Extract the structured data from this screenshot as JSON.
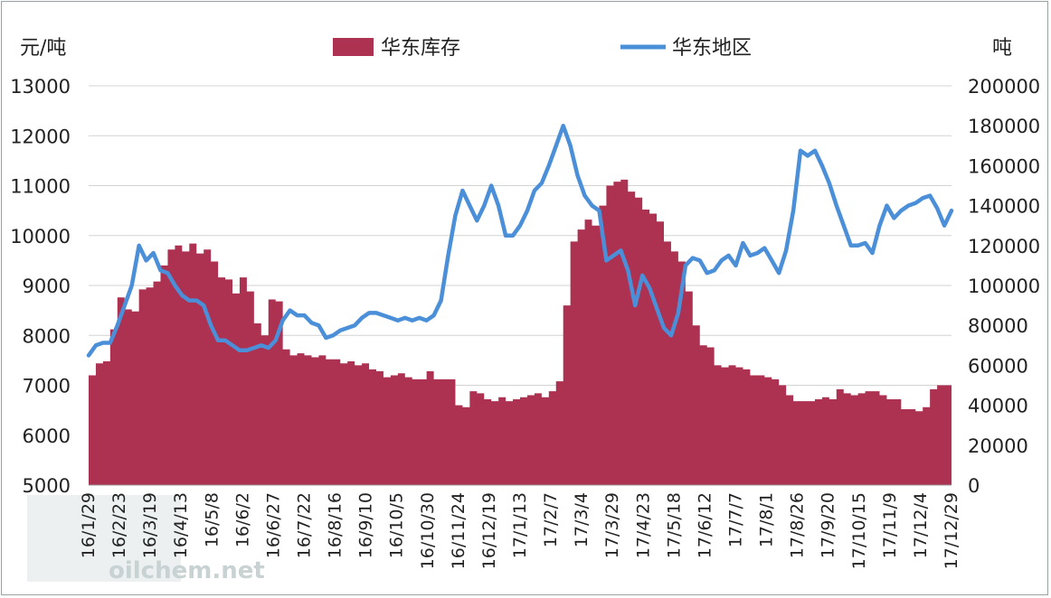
{
  "chart_data": {
    "type": "area+line",
    "title": "",
    "left_axis": {
      "unit": "元/吨",
      "min": 5000,
      "max": 13000,
      "ticks": [
        5000,
        6000,
        7000,
        8000,
        9000,
        10000,
        11000,
        12000,
        13000
      ]
    },
    "right_axis": {
      "unit": "吨",
      "min": 0,
      "max": 200000,
      "ticks": [
        0,
        20000,
        40000,
        60000,
        80000,
        100000,
        120000,
        140000,
        160000,
        180000,
        200000
      ]
    },
    "x_labels": [
      "16/1/29",
      "16/2/23",
      "16/3/19",
      "16/4/13",
      "16/5/8",
      "16/6/2",
      "16/6/27",
      "16/7/22",
      "16/8/16",
      "16/9/10",
      "16/10/5",
      "16/10/30",
      "16/11/24",
      "16/12/19",
      "17/1/13",
      "17/2/7",
      "17/3/4",
      "17/3/29",
      "17/4/23",
      "17/5/18",
      "17/6/12",
      "17/7/7",
      "17/8/1",
      "17/8/26",
      "17/9/20",
      "17/10/15",
      "17/11/9",
      "17/12/4",
      "17/12/29"
    ],
    "legend_position": "top-center",
    "series": [
      {
        "name": "华东库存",
        "axis": "right",
        "style": "area",
        "color": "#ad3150",
        "values": [
          55000,
          61000,
          62000,
          78000,
          94000,
          88000,
          87000,
          98000,
          99000,
          102000,
          110000,
          118000,
          120000,
          117000,
          121000,
          116000,
          118000,
          112000,
          104000,
          103000,
          96000,
          104000,
          97000,
          81000,
          75000,
          93000,
          92000,
          68000,
          65000,
          66000,
          65000,
          64000,
          65000,
          63000,
          63000,
          61000,
          62000,
          60000,
          61000,
          58000,
          57000,
          54000,
          55000,
          56000,
          54000,
          53000,
          53000,
          57000,
          53000,
          53000,
          53000,
          40000,
          39000,
          47000,
          46000,
          43000,
          42000,
          44000,
          42000,
          43000,
          44000,
          45000,
          46000,
          44000,
          47000,
          52000,
          90000,
          122000,
          128000,
          133000,
          130000,
          140000,
          150000,
          152000,
          153000,
          147000,
          144000,
          138000,
          136000,
          132000,
          122000,
          117000,
          112000,
          97000,
          80000,
          70000,
          69000,
          60000,
          59000,
          60000,
          59000,
          58000,
          55000,
          55000,
          54000,
          53000,
          50000,
          45000,
          42000,
          42000,
          42000,
          43000,
          44000,
          43000,
          48000,
          46000,
          45000,
          46000,
          47000,
          47000,
          45000,
          43000,
          43000,
          38000,
          38000,
          37000,
          39000,
          48000,
          50000,
          50000,
          51000
        ],
        "style_note": "step area on right axis"
      },
      {
        "name": "华东地区",
        "axis": "left",
        "style": "line",
        "color": "#4a8fd8",
        "values": [
          7600,
          7800,
          7850,
          7850,
          8200,
          8600,
          9000,
          9800,
          9500,
          9650,
          9300,
          9250,
          9000,
          8800,
          8700,
          8700,
          8600,
          8200,
          7900,
          7900,
          7800,
          7700,
          7700,
          7750,
          7800,
          7750,
          7900,
          8300,
          8500,
          8400,
          8400,
          8250,
          8200,
          7950,
          8000,
          8100,
          8150,
          8200,
          8350,
          8450,
          8450,
          8400,
          8350,
          8300,
          8350,
          8300,
          8350,
          8300,
          8400,
          8700,
          9600,
          10400,
          10900,
          10600,
          10300,
          10600,
          11000,
          10600,
          10000,
          10000,
          10200,
          10500,
          10900,
          11050,
          11400,
          11800,
          12200,
          11800,
          11200,
          10800,
          10600,
          10500,
          9500,
          9600,
          9700,
          9300,
          8600,
          9200,
          8950,
          8550,
          8150,
          8000,
          8450,
          9400,
          9550,
          9500,
          9250,
          9300,
          9500,
          9600,
          9400,
          9850,
          9600,
          9650,
          9750,
          9500,
          9250,
          9700,
          10500,
          11700,
          11600,
          11700,
          11400,
          11050,
          10600,
          10200,
          9800,
          9800,
          9850,
          9650,
          10200,
          10600,
          10350,
          10500,
          10600,
          10650,
          10750,
          10800,
          10550,
          10200,
          10500
        ]
      }
    ]
  },
  "watermark": {
    "text": "oilchem.net"
  }
}
